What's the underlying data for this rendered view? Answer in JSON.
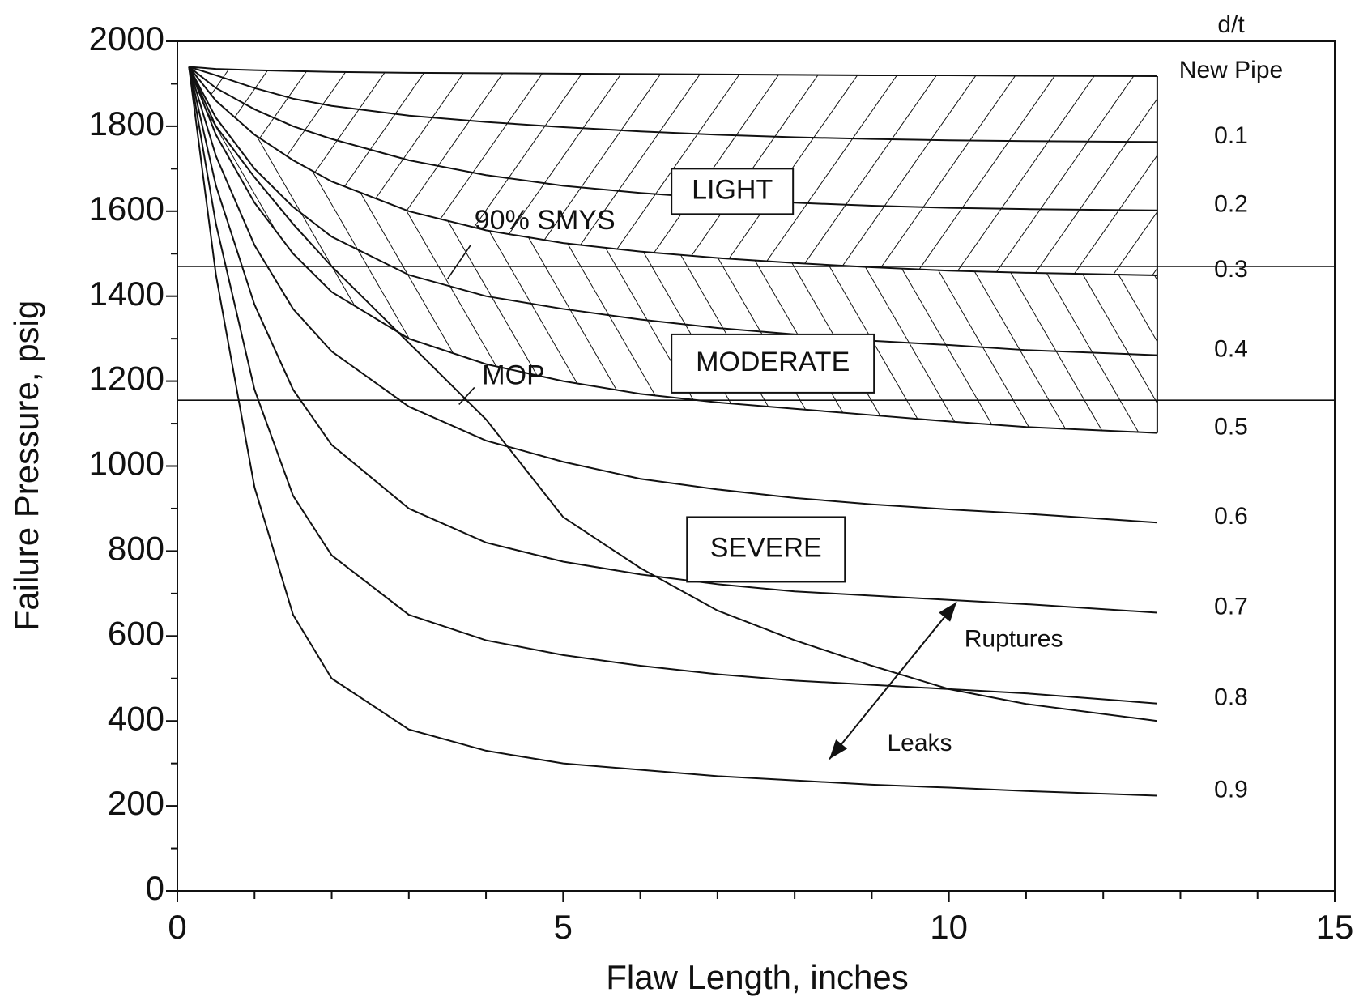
{
  "chart_data": {
    "type": "line",
    "x_label": "Flaw Length, inches",
    "y_label": "Failure Pressure, psig",
    "legend_title": "d/t",
    "xlim": [
      0,
      15
    ],
    "xticks": [
      0,
      5,
      10,
      15
    ],
    "ylim": [
      0,
      2000
    ],
    "yticks": [
      0,
      200,
      400,
      600,
      800,
      1000,
      1200,
      1400,
      1600,
      1800,
      2000
    ],
    "x": [
      0.15,
      0.5,
      1,
      1.5,
      2,
      3,
      4,
      5,
      6,
      7,
      8,
      9,
      10,
      11,
      12.7
    ],
    "color": "#111111",
    "series": [
      {
        "name": "New Pipe",
        "values": [
          1940,
          1935,
          1932,
          1930,
          1928,
          1926,
          1925,
          1924,
          1923,
          1922,
          1921,
          1920,
          1920,
          1919,
          1918
        ]
      },
      {
        "name": "0.1",
        "values": [
          1940,
          1920,
          1890,
          1865,
          1848,
          1825,
          1810,
          1798,
          1788,
          1780,
          1774,
          1770,
          1767,
          1765,
          1763
        ]
      },
      {
        "name": "0.2",
        "values": [
          1940,
          1890,
          1840,
          1800,
          1770,
          1720,
          1685,
          1660,
          1643,
          1630,
          1620,
          1613,
          1608,
          1605,
          1602
        ]
      },
      {
        "name": "0.3",
        "values": [
          1940,
          1860,
          1780,
          1720,
          1670,
          1600,
          1555,
          1525,
          1505,
          1490,
          1478,
          1468,
          1460,
          1455,
          1449
        ]
      },
      {
        "name": "0.4",
        "values": [
          1940,
          1820,
          1700,
          1610,
          1540,
          1450,
          1400,
          1370,
          1345,
          1325,
          1310,
          1295,
          1285,
          1273,
          1261
        ]
      },
      {
        "name": "0.5",
        "values": [
          1940,
          1780,
          1620,
          1500,
          1410,
          1300,
          1240,
          1200,
          1170,
          1150,
          1135,
          1120,
          1105,
          1092,
          1078
        ]
      },
      {
        "name": "0.6",
        "values": [
          1940,
          1730,
          1520,
          1370,
          1270,
          1140,
          1060,
          1010,
          970,
          945,
          925,
          910,
          898,
          888,
          867
        ]
      },
      {
        "name": "0.7",
        "values": [
          1940,
          1660,
          1380,
          1180,
          1050,
          900,
          820,
          775,
          745,
          722,
          705,
          695,
          685,
          675,
          655
        ]
      },
      {
        "name": "0.8",
        "values": [
          1940,
          1570,
          1180,
          930,
          790,
          650,
          590,
          555,
          530,
          510,
          495,
          485,
          475,
          465,
          441
        ]
      },
      {
        "name": "0.9",
        "values": [
          1940,
          1450,
          950,
          650,
          500,
          380,
          330,
          300,
          285,
          270,
          260,
          250,
          243,
          235,
          224
        ]
      }
    ],
    "boundary": {
      "values": [
        1940,
        1800,
        1680,
        1570,
        1470,
        1290,
        1110,
        880,
        760,
        660,
        590,
        530,
        475,
        440,
        400
      ]
    },
    "reference_lines": [
      {
        "label": "90% SMYS",
        "value": 1470
      },
      {
        "label": "MOP",
        "value": 1155
      }
    ],
    "regions": [
      "LIGHT",
      "MODERATE",
      "SEVERE"
    ],
    "arrows": [
      "Ruptures",
      "Leaks"
    ]
  }
}
